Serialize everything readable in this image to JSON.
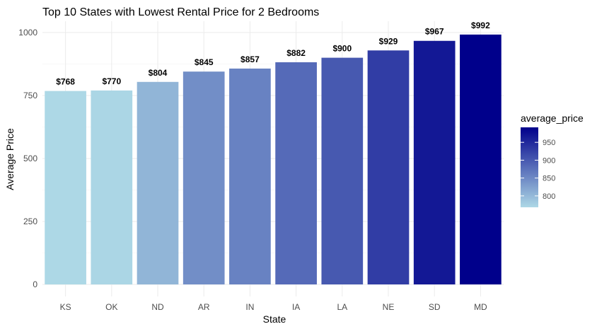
{
  "chart_data": {
    "type": "bar",
    "title": "Top 10 States with Lowest Rental Price for 2 Bedrooms",
    "xlabel": "State",
    "ylabel": "Average Price",
    "categories": [
      "KS",
      "OK",
      "ND",
      "AR",
      "IN",
      "IA",
      "LA",
      "NE",
      "SD",
      "MD"
    ],
    "values": [
      768,
      770,
      804,
      845,
      857,
      882,
      900,
      929,
      967,
      992
    ],
    "data_labels": [
      "$768",
      "$770",
      "$804",
      "$845",
      "$857",
      "$882",
      "$900",
      "$929",
      "$967",
      "$992"
    ],
    "ylim": [
      0,
      1040
    ],
    "y_ticks": [
      0,
      250,
      500,
      750,
      1000
    ],
    "y_tick_labels": [
      "0",
      "250",
      "500",
      "750",
      "1000"
    ],
    "grid": true,
    "legend": {
      "title": "average_price",
      "position": "right",
      "range": [
        768,
        992
      ],
      "ticks": [
        800,
        850,
        900,
        950
      ],
      "tick_labels": [
        "800",
        "850",
        "900",
        "950"
      ],
      "color_low": "#add8e6",
      "color_high": "#00008b"
    }
  }
}
